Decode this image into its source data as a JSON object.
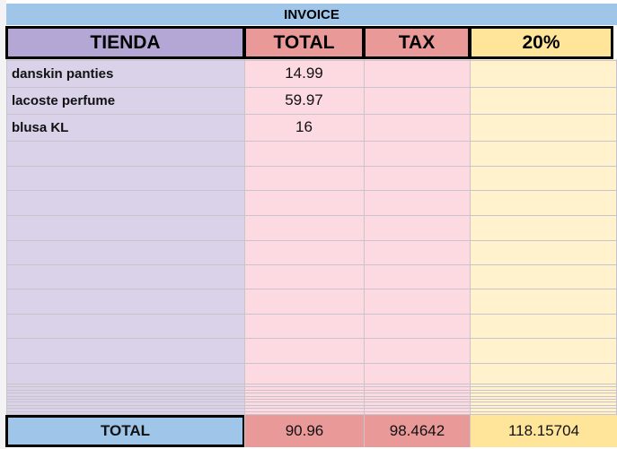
{
  "header": {
    "title": "INVOICE"
  },
  "columns": [
    "TIENDA",
    "TOTAL",
    "TAX",
    "20%"
  ],
  "rows": [
    {
      "item": "danskin panties",
      "total": 14.99
    },
    {
      "item": "lacoste perfume",
      "total": 59.97
    },
    {
      "item": "blusa KL",
      "total": 16
    }
  ],
  "footer": {
    "label": "TOTAL",
    "total": 90.96,
    "tax": 98.4642,
    "pct": 118.15704
  }
}
